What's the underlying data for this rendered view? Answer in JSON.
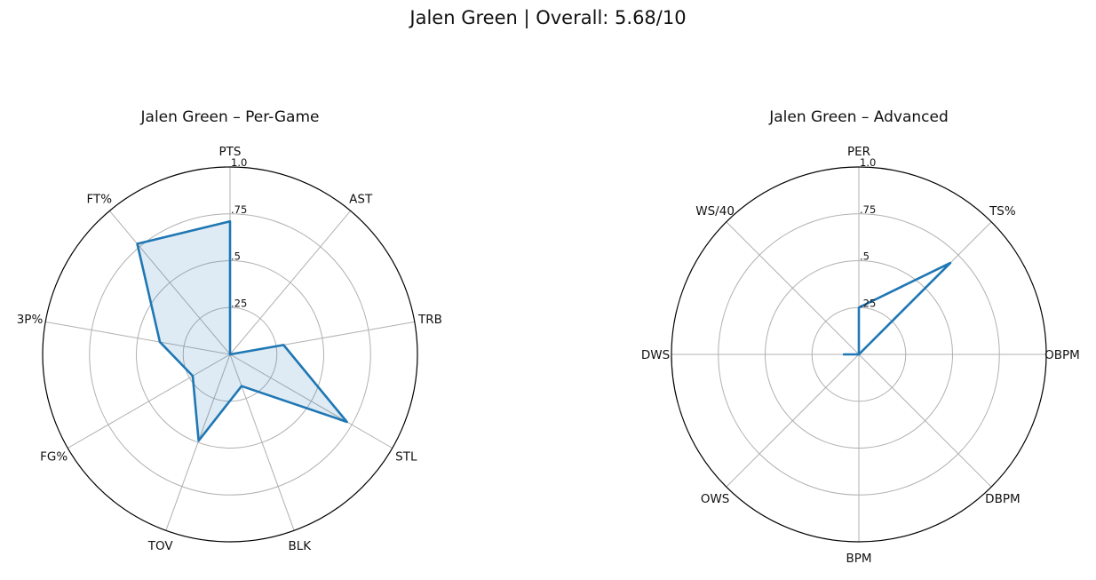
{
  "figure": {
    "title": "Jalen Green | Overall: 5.68/10"
  },
  "chart_data": [
    {
      "type": "radar",
      "title": "Jalen Green – Per-Game",
      "categories": [
        "PTS",
        "AST",
        "TRB",
        "STL",
        "BLK",
        "TOV",
        "FG%",
        "3P%",
        "FT%"
      ],
      "radial_ticks": [
        ".25",
        ".5",
        ".75",
        "1.0"
      ],
      "rlim": [
        0,
        1
      ],
      "grid": true,
      "series": [
        {
          "values": [
            0.71,
            0.0,
            0.29,
            0.72,
            0.18,
            0.49,
            0.23,
            0.38,
            0.77
          ],
          "fill": true,
          "color": "#1f77b4"
        }
      ]
    },
    {
      "type": "radar",
      "title": "Jalen Green – Advanced",
      "categories": [
        "PER",
        "TS%",
        "OBPM",
        "DBPM",
        "BPM",
        "OWS",
        "DWS",
        "WS/40"
      ],
      "radial_ticks": [
        ".25",
        ".5",
        ".75",
        "1.0"
      ],
      "rlim": [
        0,
        1
      ],
      "grid": true,
      "series": [
        {
          "values": [
            0.25,
            0.69,
            0.0,
            0.0,
            0.0,
            0.0,
            0.08,
            0.0
          ],
          "fill": false,
          "color": "#1f77b4"
        }
      ]
    }
  ]
}
